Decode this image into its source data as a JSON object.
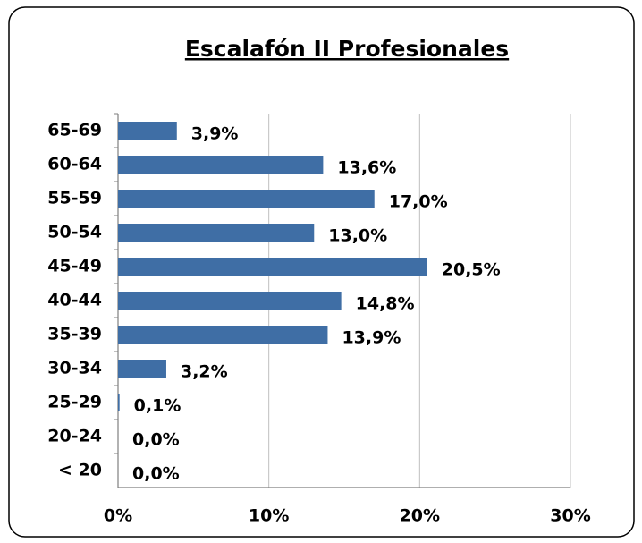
{
  "chart_data": {
    "type": "barh",
    "title": "Escalafón II  Profesionales",
    "categories": [
      "65-69",
      "60-64",
      "55-59",
      "50-54",
      "45-49",
      "40-44",
      "35-39",
      "30-34",
      "25-29",
      "20-24",
      "< 20"
    ],
    "values": [
      3.9,
      13.6,
      17.0,
      13.0,
      20.5,
      14.8,
      13.9,
      3.2,
      0.1,
      0.0,
      0.0
    ],
    "value_labels": [
      "3,9%",
      "13,6%",
      "17,0%",
      "13,0%",
      "20,5%",
      "14,8%",
      "13,9%",
      "3,2%",
      "0,1%",
      "0,0%",
      "0,0%"
    ],
    "color": "#3f6ea5",
    "xlim": [
      0,
      30
    ],
    "xticks": [
      {
        "value": 0,
        "label": "0%"
      },
      {
        "value": 10,
        "label": "10%"
      },
      {
        "value": 20,
        "label": "20%"
      },
      {
        "value": 30,
        "label": "30%"
      }
    ],
    "grid": true
  }
}
